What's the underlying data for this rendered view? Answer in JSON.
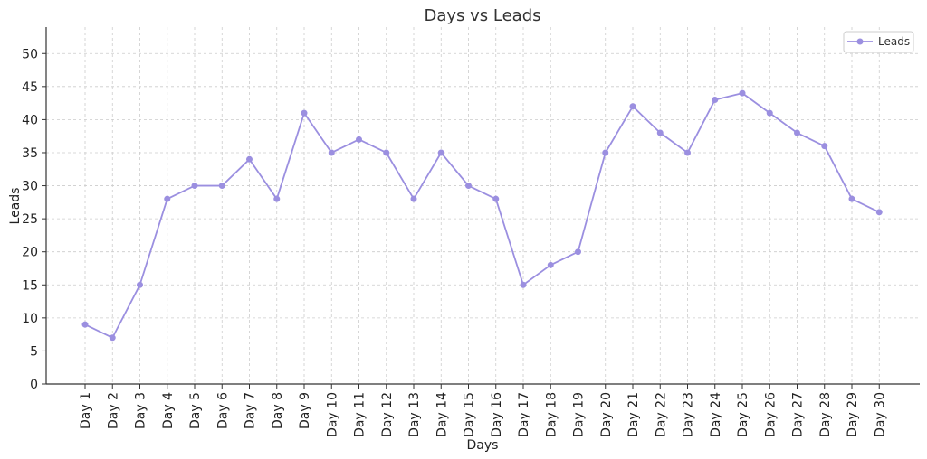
{
  "chart_data": {
    "type": "line",
    "title": "Days vs Leads",
    "xlabel": "Days",
    "ylabel": "Leads",
    "categories": [
      "Day 1",
      "Day 2",
      "Day 3",
      "Day 4",
      "Day 5",
      "Day 6",
      "Day 7",
      "Day 8",
      "Day 9",
      "Day 10",
      "Day 11",
      "Day 12",
      "Day 13",
      "Day 14",
      "Day 15",
      "Day 16",
      "Day 17",
      "Day 18",
      "Day 19",
      "Day 20",
      "Day 21",
      "Day 22",
      "Day 23",
      "Day 24",
      "Day 25",
      "Day 26",
      "Day 27",
      "Day 28",
      "Day 29",
      "Day 30"
    ],
    "series": [
      {
        "name": "Leads",
        "values": [
          9,
          7,
          15,
          28,
          30,
          30,
          34,
          28,
          41,
          35,
          37,
          35,
          28,
          35,
          30,
          28,
          15,
          18,
          20,
          35,
          42,
          38,
          35,
          43,
          44,
          41,
          38,
          36,
          28,
          26
        ],
        "color": "#9b8fe0"
      }
    ],
    "ylim": [
      0,
      54
    ],
    "yticks": [
      0,
      5,
      10,
      15,
      20,
      25,
      30,
      35,
      40,
      45,
      50
    ],
    "grid": true,
    "legend_position": "top-right"
  }
}
